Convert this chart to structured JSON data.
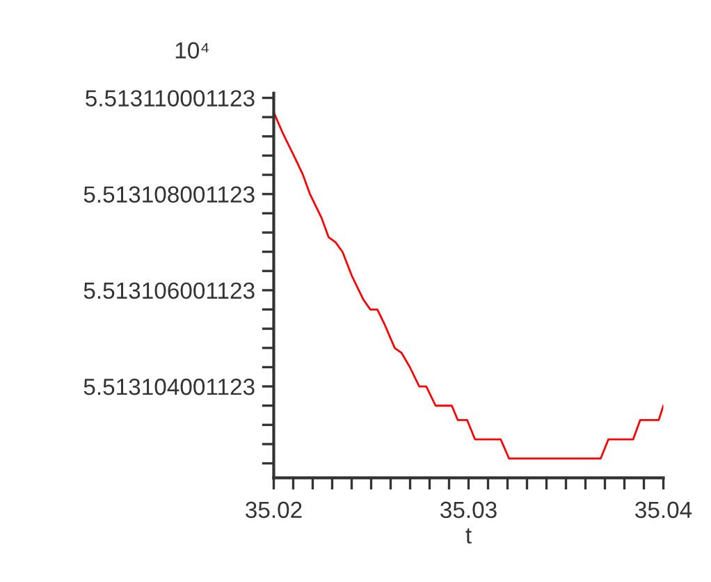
{
  "chart_data": {
    "type": "line",
    "xlabel": "t",
    "annotations": [
      "10⁴"
    ],
    "x": [
      35.02,
      35.02043,
      35.02079,
      35.02115,
      35.0215,
      35.02186,
      35.0221,
      35.02246,
      35.02282,
      35.02317,
      35.02353,
      35.02401,
      35.02461,
      35.02496,
      35.02532,
      35.02568,
      35.02621,
      35.02656,
      35.02699,
      35.02747,
      35.02783,
      35.02831,
      35.02914,
      35.02945,
      35.02993,
      35.03033,
      35.03165,
      35.03208,
      35.03678,
      35.03718,
      35.03845,
      35.03881,
      35.03976,
      35.04
    ],
    "series": [
      {
        "color": "#ff0000",
        "values": [
          5.5131097,
          5.5131093,
          5.513109,
          5.5131087,
          5.5131084,
          5.513108,
          5.5131078,
          5.5131075,
          5.5131071,
          5.513107,
          5.5131068,
          5.5131063,
          5.5131058,
          5.5131056,
          5.5131056,
          5.5131053,
          5.5131048,
          5.5131047,
          5.5131044,
          5.513104,
          5.513104,
          5.5131036,
          5.5131036,
          5.5131033,
          5.5131033,
          5.5131029,
          5.5131029,
          5.5131025,
          5.5131025,
          5.5131029,
          5.5131029,
          5.5131033,
          5.5131033,
          5.5131036
        ]
      }
    ],
    "xlim": [
      35.02,
      35.04
    ],
    "xticks": [
      35.02,
      35.03,
      35.04
    ],
    "ylim": [
      5.5131021,
      5.5131101
    ],
    "yticks": [
      5.513104001123,
      5.513106001123,
      5.513108001123,
      5.513110001123
    ],
    "grid": false,
    "legend": false,
    "marker": "none",
    "line_style": "solid"
  }
}
